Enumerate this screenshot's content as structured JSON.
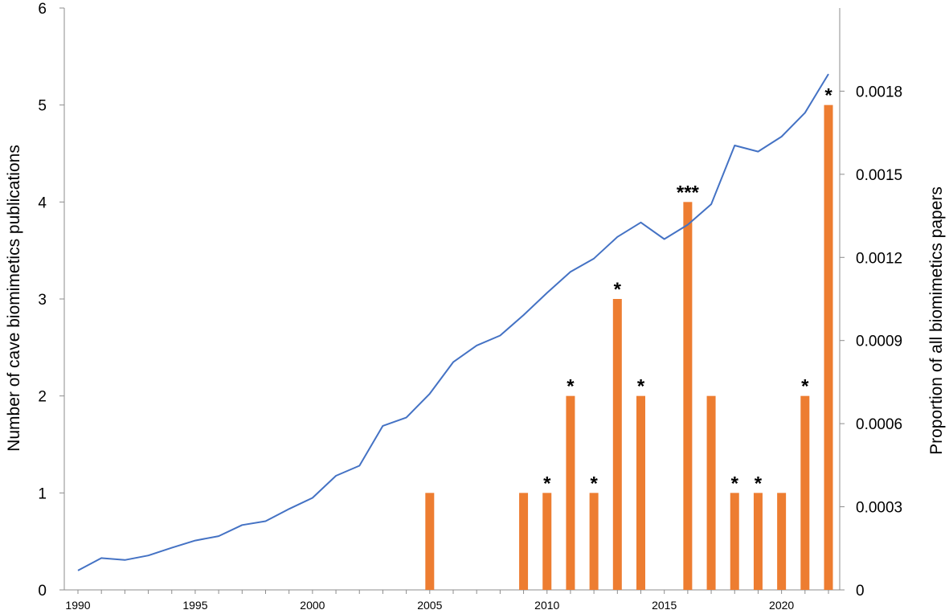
{
  "chart_data": {
    "type": "bar",
    "title": "",
    "xlabel": "",
    "ylabel": "Number of cave biomimetics publications",
    "y2label": "Proportion of all biomimetics papers",
    "ylim": [
      0,
      6
    ],
    "y2lim": [
      0,
      0.0021
    ],
    "xlim": [
      1990,
      2022
    ],
    "x_ticks": [
      "1990",
      "1995",
      "2000",
      "2005",
      "2010",
      "2015",
      "2020"
    ],
    "y_ticks": [
      "0",
      "1",
      "2",
      "3",
      "4",
      "5",
      "6"
    ],
    "y2_ticks": [
      "0",
      "0.0003",
      "0.0006",
      "0.0009",
      "0.0012",
      "0.0015",
      "0.0018"
    ],
    "grid": false,
    "colors": {
      "bar": "#ED7D31",
      "line": "#4472C4"
    },
    "series": [
      {
        "type": "bar",
        "axis": "left",
        "x": [
          2005,
          2009,
          2010,
          2011,
          2012,
          2013,
          2014,
          2016,
          2017,
          2018,
          2019,
          2020,
          2021,
          2022
        ],
        "values": [
          1,
          1,
          1,
          2,
          1,
          3,
          2,
          4,
          2,
          1,
          1,
          1,
          2,
          5
        ],
        "annotations": [
          "",
          "",
          "*",
          "*",
          "*",
          "*",
          "*",
          "***",
          "",
          "*",
          "*",
          "",
          "*",
          "*"
        ]
      },
      {
        "type": "line",
        "axis": "right",
        "x": [
          1990,
          1991,
          1992,
          1993,
          1994,
          1995,
          1996,
          1997,
          1998,
          1999,
          2000,
          2001,
          2002,
          2003,
          2004,
          2005,
          2006,
          2007,
          2008,
          2009,
          2010,
          2011,
          2012,
          2013,
          2014,
          2015,
          2016,
          2017,
          2018,
          2019,
          2020,
          2021,
          2022
        ],
        "values": [
          7e-05,
          0.000115,
          0.000108,
          0.000124,
          0.000152,
          0.000178,
          0.000194,
          0.000234,
          0.000248,
          0.000292,
          0.000332,
          0.000412,
          0.000448,
          0.000592,
          0.000622,
          0.000708,
          0.000822,
          0.000882,
          0.000918,
          0.000992,
          0.001072,
          0.001148,
          0.001196,
          0.001274,
          0.001326,
          0.001266,
          0.001318,
          0.001392,
          0.001604,
          0.001582,
          0.001636,
          0.001722,
          0.001862
        ]
      }
    ]
  }
}
